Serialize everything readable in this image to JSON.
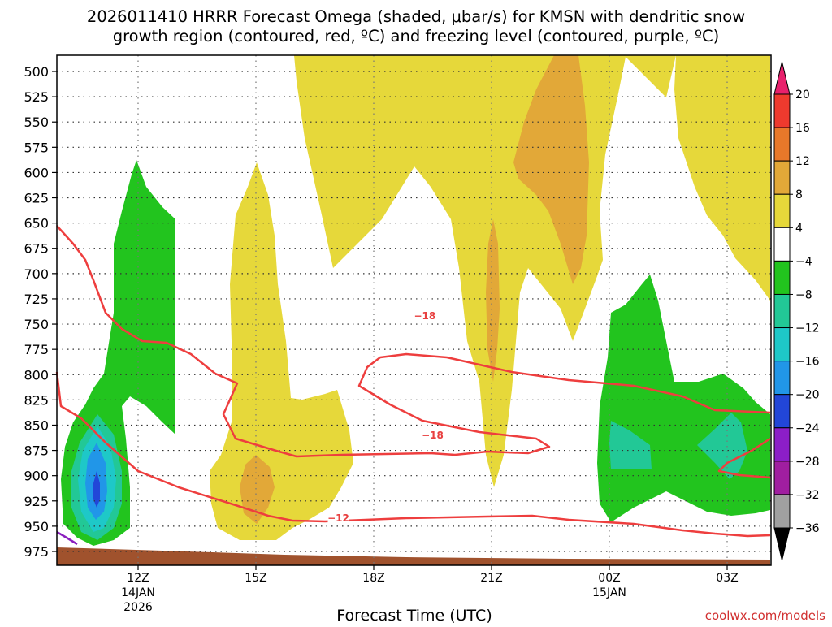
{
  "chart_data": {
    "type": "contour",
    "title_lines": [
      "2026011410 HRRR Forecast Omega (shaded, μbar/s) for KMSN with dendritic snow",
      "growth region (contoured, red, ºC) and freezing level (contoured, purple, ºC)"
    ],
    "xlabel": "Forecast Time (UTC)",
    "ylabel": "",
    "x_ticks": [
      {
        "label": "12Z",
        "sub1": "14JAN",
        "sub2": "2026",
        "hour": 12
      },
      {
        "label": "15Z",
        "sub1": "",
        "sub2": "",
        "hour": 15
      },
      {
        "label": "18Z",
        "sub1": "",
        "sub2": "",
        "hour": 18
      },
      {
        "label": "21Z",
        "sub1": "",
        "sub2": "",
        "hour": 21
      },
      {
        "label": "00Z",
        "sub1": "15JAN",
        "sub2": "",
        "hour": 24
      },
      {
        "label": "03Z",
        "sub1": "",
        "sub2": "",
        "hour": 27
      }
    ],
    "x_range_hours": [
      10,
      28
    ],
    "y_ticks": [
      500,
      525,
      550,
      575,
      600,
      625,
      650,
      675,
      700,
      725,
      750,
      775,
      800,
      825,
      850,
      875,
      900,
      925,
      950,
      975
    ],
    "y_range_mb": [
      485,
      995
    ],
    "colorbar": {
      "labels": [
        "20",
        "16",
        "12",
        "8",
        "4",
        "−4",
        "−8",
        "−12",
        "−16",
        "−20",
        "−24",
        "−28",
        "−32",
        "−36"
      ],
      "colors": [
        "#e8206c",
        "#ee3a2e",
        "#e8782a",
        "#e2a838",
        "#e6d83a",
        "#ffffff",
        "#22c41e",
        "#22c896",
        "#1ec8c8",
        "#2196e8",
        "#2246d8",
        "#8c1ec8",
        "#a01ea0",
        "#a0a0a0",
        "#000000"
      ]
    },
    "dgz_contours": [
      {
        "label": "−18",
        "value": -18,
        "hour": 19.3,
        "mb": 742
      },
      {
        "label": "−18",
        "value": -18,
        "hour": 19.5,
        "mb": 860
      },
      {
        "label": "−12",
        "value": -12,
        "hour": 17.1,
        "mb": 942
      }
    ],
    "surface_color": "#a0522d",
    "credit": "coolwx.com/models"
  }
}
